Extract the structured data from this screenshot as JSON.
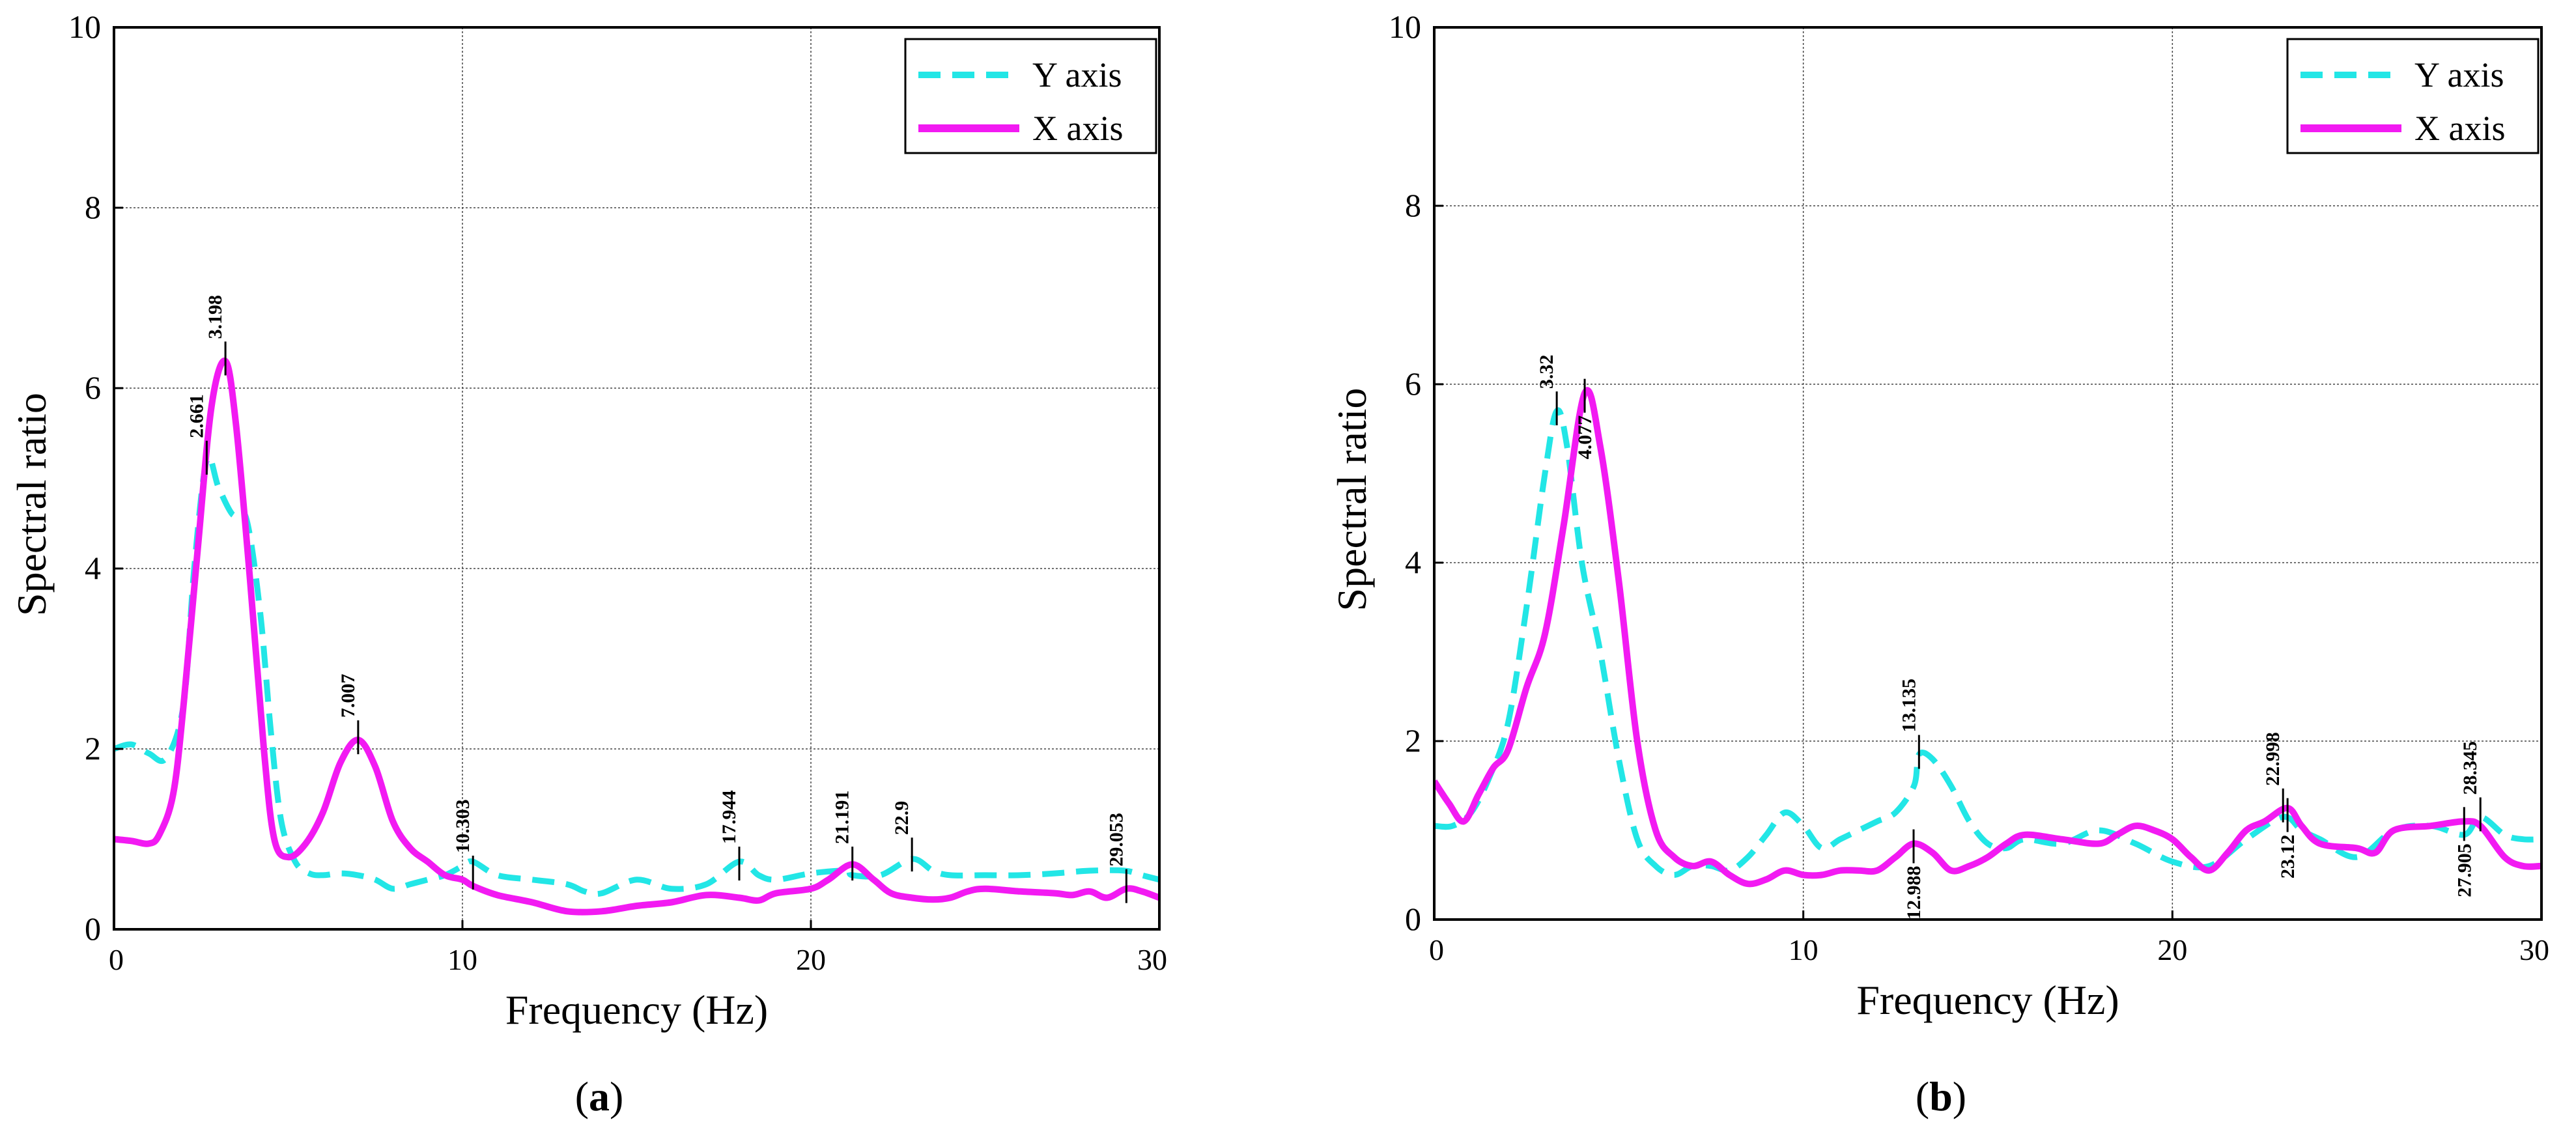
{
  "panels": [
    {
      "caption_letter": "a",
      "xlabel": "Frequency (Hz)",
      "ylabel": "Spectral ratio",
      "xlim": [
        0,
        30
      ],
      "ylim": [
        0,
        10
      ],
      "xticks": [
        0,
        10,
        20,
        30
      ],
      "yticks": [
        0,
        2,
        4,
        6,
        8,
        10
      ],
      "legend": [
        "Y axis",
        "X axis"
      ]
    },
    {
      "caption_letter": "b",
      "xlabel": "Frequency (Hz)",
      "ylabel": "Spectral ratio",
      "xlim": [
        0,
        30
      ],
      "ylim": [
        0,
        10
      ],
      "xticks": [
        0,
        10,
        20,
        30
      ],
      "yticks": [
        0,
        2,
        4,
        6,
        8,
        10
      ],
      "legend": [
        "Y axis",
        "X axis"
      ]
    }
  ],
  "colors": {
    "y_axis": "#22e6e6",
    "x_axis": "#f21af2",
    "grid": "#444444",
    "marker": "#000000"
  },
  "chart_data": [
    {
      "type": "line",
      "xlabel": "Frequency (Hz)",
      "ylabel": "Spectral ratio",
      "xlim": [
        0,
        30
      ],
      "ylim": [
        0,
        10
      ],
      "grid": true,
      "legend_position": "top-right",
      "series": [
        {
          "name": "Y axis",
          "style": "dashed",
          "x": [
            0,
            0.5,
            1,
            1.5,
            2,
            2.3,
            2.661,
            3.0,
            3.4,
            3.8,
            4.2,
            4.5,
            4.8,
            5.2,
            5.6,
            6.0,
            6.5,
            7.0,
            7.5,
            8.0,
            8.5,
            9.0,
            9.5,
            10.0,
            10.3,
            11.0,
            12.0,
            13.0,
            13.5,
            14.0,
            15.0,
            16.0,
            17.0,
            17.944,
            18.5,
            19.0,
            20.0,
            21.0,
            21.191,
            22.0,
            22.9,
            23.5,
            24.0,
            25.0,
            26.0,
            27.0,
            28.0,
            29.0,
            29.5,
            30.0
          ],
          "values": [
            2.0,
            2.05,
            1.95,
            1.9,
            2.5,
            4.0,
            5.2,
            4.9,
            4.6,
            4.55,
            3.5,
            2.2,
            1.2,
            0.75,
            0.62,
            0.6,
            0.62,
            0.6,
            0.55,
            0.45,
            0.5,
            0.55,
            0.6,
            0.7,
            0.75,
            0.6,
            0.55,
            0.5,
            0.42,
            0.4,
            0.55,
            0.45,
            0.5,
            0.75,
            0.6,
            0.55,
            0.62,
            0.65,
            0.6,
            0.6,
            0.78,
            0.65,
            0.6,
            0.6,
            0.6,
            0.62,
            0.65,
            0.65,
            0.6,
            0.55
          ]
        },
        {
          "name": "X axis",
          "style": "solid",
          "x": [
            0,
            0.5,
            1,
            1.3,
            1.7,
            2.0,
            2.4,
            2.8,
            3.198,
            3.5,
            3.9,
            4.3,
            4.6,
            5.0,
            5.5,
            6.0,
            6.5,
            7.007,
            7.5,
            8.0,
            8.5,
            9.0,
            9.5,
            10.0,
            10.303,
            11.0,
            12.0,
            13.0,
            14.0,
            15.0,
            16.0,
            17.0,
            17.944,
            18.5,
            19.0,
            20.0,
            20.5,
            21.191,
            21.8,
            22.3,
            22.9,
            23.5,
            24.0,
            24.5,
            25.0,
            26.0,
            27.0,
            27.5,
            28.0,
            28.5,
            29.053,
            29.5,
            30.0
          ],
          "values": [
            1.0,
            0.98,
            0.95,
            1.05,
            1.5,
            2.5,
            4.2,
            5.8,
            6.3,
            5.6,
            3.9,
            2.0,
            1.0,
            0.8,
            0.95,
            1.3,
            1.85,
            2.1,
            1.8,
            1.2,
            0.9,
            0.75,
            0.6,
            0.55,
            0.48,
            0.38,
            0.3,
            0.2,
            0.2,
            0.26,
            0.3,
            0.38,
            0.35,
            0.32,
            0.4,
            0.45,
            0.55,
            0.72,
            0.55,
            0.4,
            0.35,
            0.33,
            0.35,
            0.42,
            0.45,
            0.42,
            0.4,
            0.38,
            0.42,
            0.35,
            0.45,
            0.42,
            0.35
          ]
        }
      ],
      "annotations": [
        {
          "x": 2.661,
          "y": 5.2,
          "label": "2.661"
        },
        {
          "x": 3.198,
          "y": 6.3,
          "label": "3.198"
        },
        {
          "x": 7.007,
          "y": 2.1,
          "label": "7.007"
        },
        {
          "x": 10.303,
          "y": 0.6,
          "label": "10.303"
        },
        {
          "x": 17.944,
          "y": 0.7,
          "label": "17.944"
        },
        {
          "x": 21.191,
          "y": 0.7,
          "label": "21.191"
        },
        {
          "x": 22.9,
          "y": 0.8,
          "label": "22.9"
        },
        {
          "x": 29.053,
          "y": 0.45,
          "label": "29.053"
        }
      ]
    },
    {
      "type": "line",
      "xlabel": "Frequency (Hz)",
      "ylabel": "Spectral ratio",
      "xlim": [
        0,
        30
      ],
      "ylim": [
        0,
        10
      ],
      "grid": true,
      "legend_position": "top-right",
      "series": [
        {
          "name": "Y axis",
          "style": "dashed",
          "x": [
            0,
            0.5,
            1,
            1.5,
            2,
            2.5,
            3.0,
            3.32,
            3.6,
            4.0,
            4.5,
            5.0,
            5.5,
            6.0,
            6.5,
            7.0,
            7.5,
            8.0,
            8.5,
            9.0,
            9.5,
            10.0,
            10.5,
            11.0,
            11.5,
            12.0,
            12.5,
            13.0,
            13.135,
            13.5,
            14.0,
            14.5,
            15.0,
            15.5,
            16.0,
            17.0,
            18.0,
            19.0,
            20.0,
            21.0,
            22.0,
            22.998,
            23.5,
            24.0,
            25.0,
            26.0,
            27.0,
            27.905,
            28.345,
            29.0,
            29.5,
            30.0
          ],
          "values": [
            1.05,
            1.05,
            1.2,
            1.6,
            2.2,
            3.5,
            5.0,
            5.7,
            5.3,
            4.0,
            3.0,
            1.8,
            0.9,
            0.6,
            0.5,
            0.6,
            0.6,
            0.55,
            0.7,
            0.95,
            1.2,
            1.05,
            0.8,
            0.9,
            1.0,
            1.1,
            1.2,
            1.5,
            1.85,
            1.8,
            1.5,
            1.1,
            0.85,
            0.8,
            0.9,
            0.85,
            1.0,
            0.85,
            0.65,
            0.6,
            0.9,
            1.15,
            1.0,
            0.9,
            0.7,
            1.0,
            1.05,
            0.95,
            1.15,
            0.95,
            0.9,
            0.9
          ]
        },
        {
          "name": "X axis",
          "style": "solid",
          "x": [
            0,
            0.4,
            0.8,
            1.2,
            1.6,
            2.0,
            2.5,
            3.0,
            3.5,
            4.077,
            4.5,
            5.0,
            5.5,
            6.0,
            6.5,
            7.0,
            7.5,
            8.0,
            8.5,
            9.0,
            9.5,
            10.0,
            10.5,
            11.0,
            11.5,
            12.0,
            12.5,
            12.988,
            13.5,
            14.0,
            14.5,
            15.0,
            15.5,
            16.0,
            17.0,
            18.0,
            18.5,
            19.0,
            19.5,
            20.0,
            20.5,
            21.0,
            21.5,
            22.0,
            22.5,
            23.12,
            23.5,
            24.0,
            25.0,
            25.5,
            26.0,
            27.0,
            27.905,
            28.345,
            29.0,
            29.5,
            30.0
          ],
          "values": [
            1.55,
            1.3,
            1.1,
            1.4,
            1.7,
            1.9,
            2.6,
            3.2,
            4.4,
            5.9,
            5.3,
            3.8,
            2.0,
            1.0,
            0.7,
            0.6,
            0.65,
            0.5,
            0.4,
            0.45,
            0.55,
            0.5,
            0.5,
            0.55,
            0.55,
            0.55,
            0.7,
            0.85,
            0.75,
            0.55,
            0.6,
            0.7,
            0.85,
            0.95,
            0.9,
            0.85,
            0.95,
            1.05,
            1.0,
            0.9,
            0.7,
            0.55,
            0.75,
            1.0,
            1.1,
            1.25,
            1.05,
            0.85,
            0.8,
            0.75,
            1.0,
            1.05,
            1.1,
            1.05,
            0.7,
            0.6,
            0.6
          ]
        }
      ],
      "annotations": [
        {
          "x": 3.32,
          "y": 5.7,
          "label": "3.32"
        },
        {
          "x": 4.077,
          "y": 5.9,
          "label": "4.077"
        },
        {
          "x": 13.135,
          "y": 1.85,
          "label": "13.135"
        },
        {
          "x": 12.988,
          "y": 0.85,
          "label": "12.988"
        },
        {
          "x": 22.998,
          "y": 1.25,
          "label": "22.998"
        },
        {
          "x": 23.12,
          "y": 1.2,
          "label": "23.12"
        },
        {
          "x": 27.905,
          "y": 1.1,
          "label": "27.905"
        },
        {
          "x": 28.345,
          "y": 1.15,
          "label": "28.345"
        }
      ]
    }
  ]
}
